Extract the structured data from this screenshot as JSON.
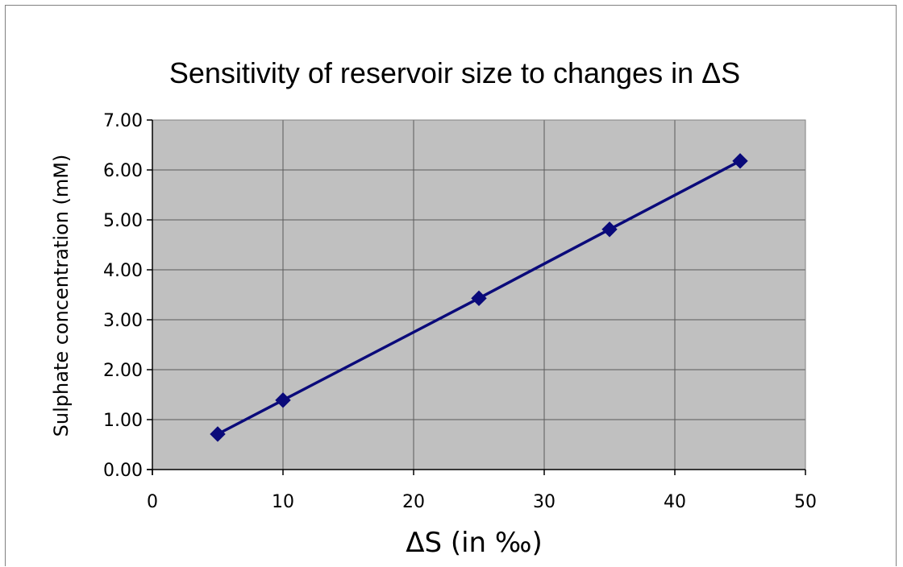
{
  "chart_data": {
    "type": "line",
    "title": "Sensitivity of reservoir size to changes in ΔS",
    "xlabel": "ΔS (in ‰)",
    "ylabel": "Sulphate concentration (mM)",
    "xlim": [
      0,
      50
    ],
    "ylim": [
      0,
      7
    ],
    "xticks": [
      "0",
      "10",
      "20",
      "30",
      "40",
      "50"
    ],
    "yticks": [
      "0.00",
      "1.00",
      "2.00",
      "3.00",
      "4.00",
      "5.00",
      "6.00",
      "7.00"
    ],
    "grid": true,
    "marker": "diamond",
    "colors": {
      "line": "#0a0a7a",
      "plot_background": "#c0c0c0",
      "grid": "#5a5a5a"
    },
    "series": [
      {
        "x": [
          5,
          10,
          25,
          35,
          45
        ],
        "y": [
          0.71,
          1.39,
          3.43,
          4.81,
          6.18
        ]
      }
    ]
  }
}
